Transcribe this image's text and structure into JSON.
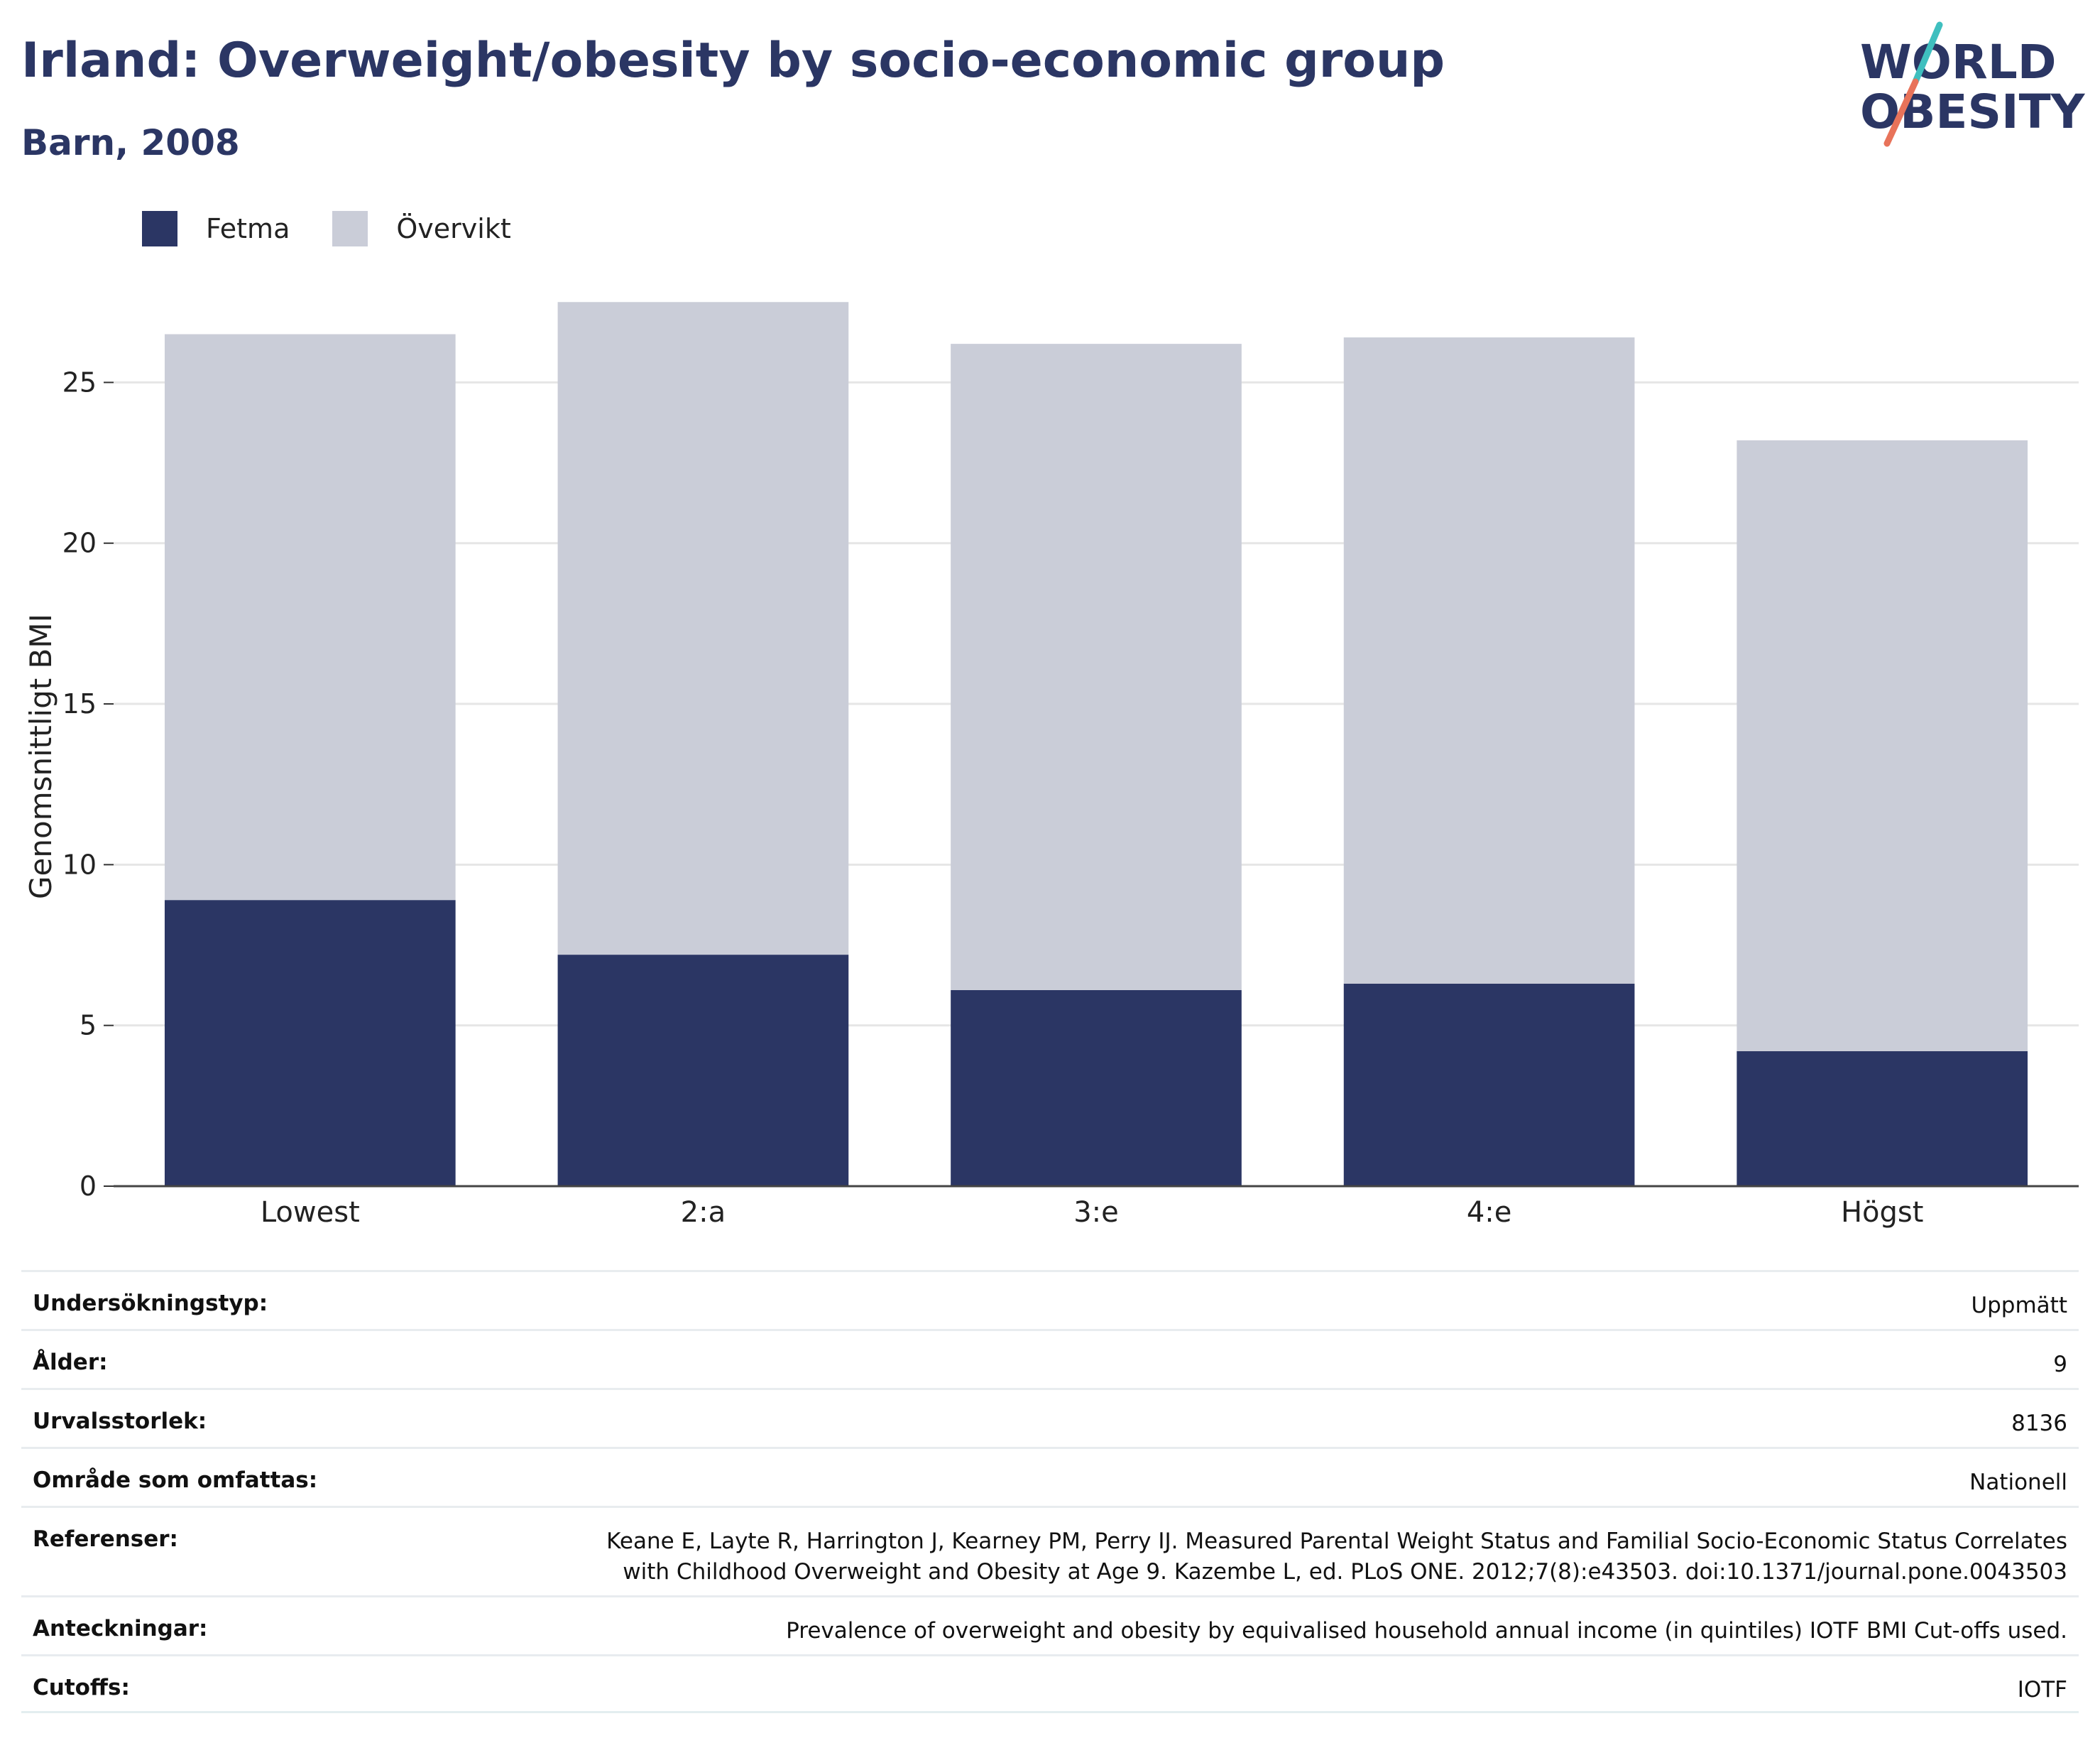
{
  "header": {
    "title": "Irland: Overweight/obesity by socio-economic group",
    "subtitle": "Barn, 2008"
  },
  "logo": {
    "line1": "WORLD",
    "line2": "OBESITY",
    "colors": {
      "text": "#2b3664",
      "slash_top": "#3fbfbf",
      "slash_bottom": "#e8735a"
    }
  },
  "legend": [
    {
      "label": "Fetma",
      "color": "#2b3664"
    },
    {
      "label": "Övervikt",
      "color": "#cacdd8"
    }
  ],
  "chart_data": {
    "type": "bar",
    "stacked": true,
    "categories": [
      "Lowest",
      "2:a",
      "3:e",
      "4:e",
      "Högst"
    ],
    "series": [
      {
        "name": "Fetma",
        "color": "#2b3664",
        "values": [
          8.9,
          7.2,
          6.1,
          6.3,
          4.2
        ]
      },
      {
        "name": "Övervikt",
        "color": "#cacdd8",
        "values": [
          17.6,
          20.3,
          20.1,
          20.1,
          19.0
        ]
      }
    ],
    "ylabel": "Genomsnittligt BMI",
    "yticks": [
      0,
      5,
      10,
      15,
      20,
      25
    ],
    "ylim": [
      0,
      28.5
    ],
    "grid": true,
    "legend_position": "top-left"
  },
  "meta": [
    {
      "label": "Undersökningstyp:",
      "value": "Uppmätt"
    },
    {
      "label": "Ålder:",
      "value": "9"
    },
    {
      "label": "Urvalsstorlek:",
      "value": "8136"
    },
    {
      "label": "Område som omfattas:",
      "value": "Nationell"
    },
    {
      "label": "Referenser:",
      "value_lines": [
        "Keane E, Layte R, Harrington J, Kearney PM, Perry IJ. Measured Parental Weight Status and Familial Socio-Economic Status Correlates",
        "with Childhood Overweight and Obesity at Age 9. Kazembe L, ed. PLoS ONE. 2012;7(8):e43503. doi:10.1371/journal.pone.0043503"
      ]
    },
    {
      "label": "Anteckningar:",
      "value": "Prevalence of overweight and obesity by equivalised household annual income (in quintiles) IOTF BMI Cut-offs used."
    },
    {
      "label": "Cutoffs:",
      "value": "IOTF"
    }
  ]
}
